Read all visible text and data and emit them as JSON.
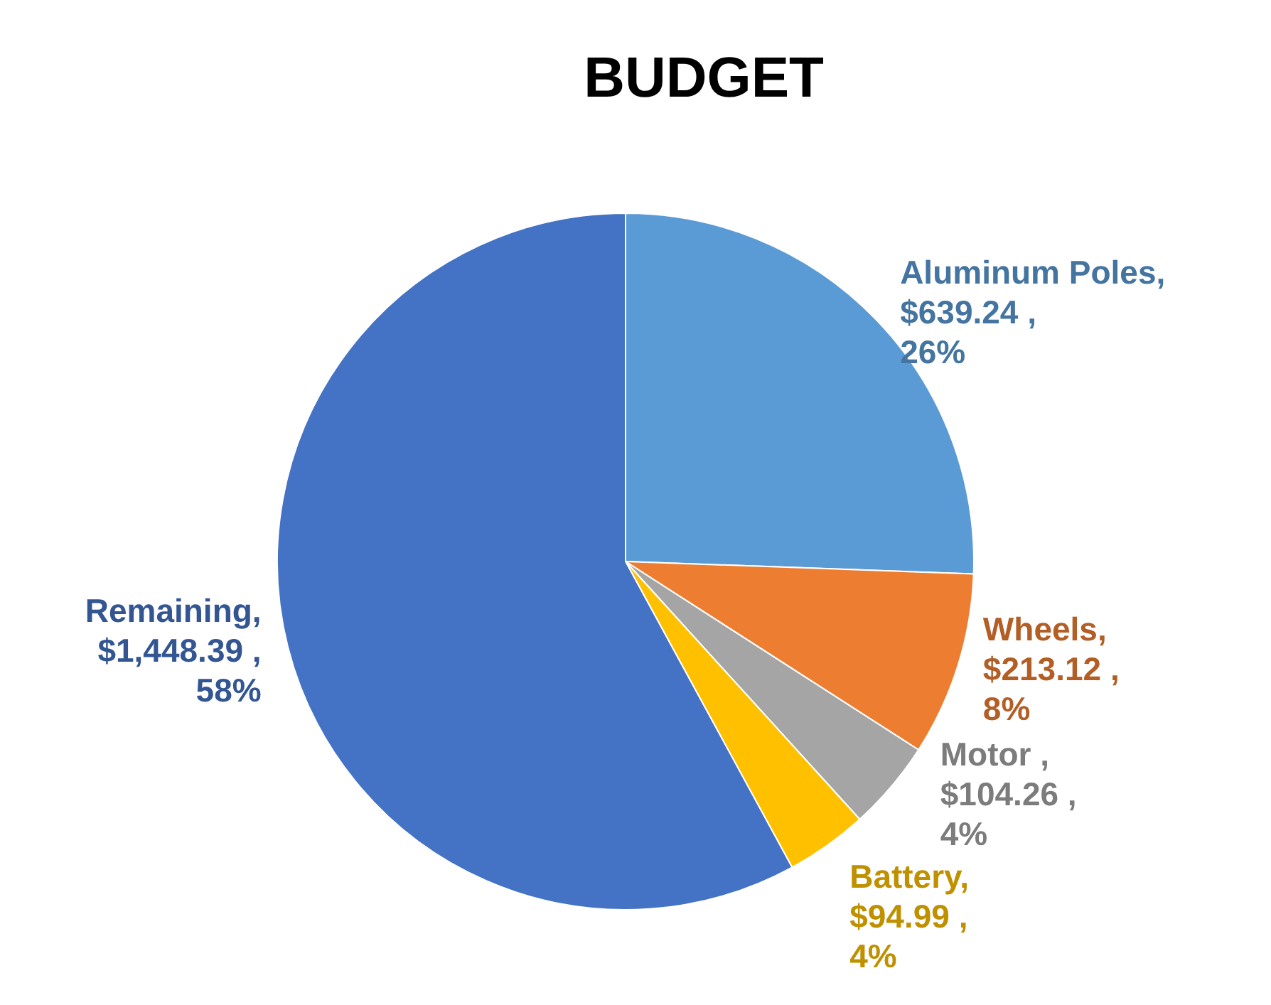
{
  "chart_data": {
    "type": "pie",
    "title": "BUDGET",
    "categories": [
      "Aluminum Poles",
      "Wheels",
      "Motor",
      "Battery",
      "Remaining"
    ],
    "values": [
      639.24,
      213.12,
      104.26,
      94.99,
      1448.39
    ],
    "value_labels": [
      ", $639.24 , 26%",
      ", $213.12 , 8%",
      " , $104.26 , 4%",
      ", $94.99 , 4%",
      ", $1,448.39 , 58%"
    ],
    "colors": [
      "#5b9bd5",
      "#ed7d31",
      "#a5a5a5",
      "#ffc000",
      "#4472c4"
    ],
    "legend": false
  }
}
